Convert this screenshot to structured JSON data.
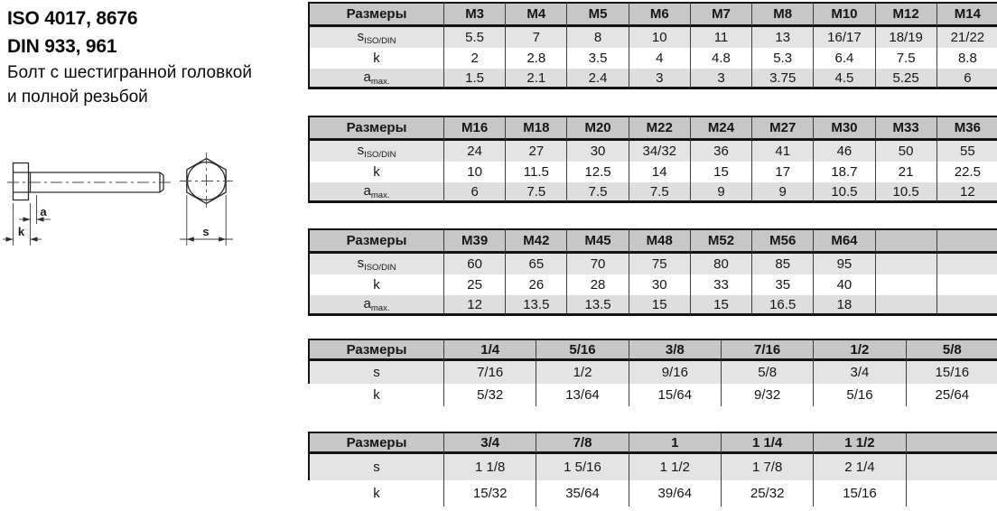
{
  "header": {
    "iso_line": "ISO 4017, 8676",
    "din_line": "DIN 933, 961",
    "description_line1": "Болт с шестигранной головкой",
    "description_line2": "и полной резьбой"
  },
  "diagram": {
    "labels": {
      "a": "a",
      "k": "k",
      "s": "s"
    }
  },
  "colors": {
    "header_bg": "#c7c7c7",
    "row_shade_s": "#e4e4e4",
    "row_shade_a": "#dedede",
    "row_white_bg": "#ffffff",
    "border_dark": "#141414",
    "grid_line": "#3f3f3f"
  },
  "tables": [
    {
      "name": "metric-table-m3-m14",
      "header_label": "Размеры",
      "columns": [
        "M3",
        "M4",
        "M5",
        "M6",
        "M7",
        "M8",
        "M10",
        "M12",
        "M14"
      ],
      "bottom_border": true,
      "rows": [
        {
          "label_main": "s",
          "label_sub": "ISO/DIN",
          "shade": "s",
          "open": false,
          "values": [
            "5.5",
            "7",
            "8",
            "10",
            "11",
            "13",
            "16/17",
            "18/19",
            "21/22"
          ]
        },
        {
          "label_main": "k",
          "label_sub": "",
          "shade": "none",
          "open": false,
          "values": [
            "2",
            "2.8",
            "3.5",
            "4",
            "4.8",
            "5.3",
            "6.4",
            "7.5",
            "8.8"
          ]
        },
        {
          "label_main": "a",
          "label_sub": "max.",
          "shade": "a",
          "open": false,
          "values": [
            "1.5",
            "2.1",
            "2.4",
            "3",
            "3",
            "3.75",
            "4.5",
            "5.25",
            "6"
          ]
        }
      ]
    },
    {
      "name": "metric-table-m16-m36",
      "header_label": "Размеры",
      "columns": [
        "M16",
        "M18",
        "M20",
        "M22",
        "M24",
        "M27",
        "M30",
        "M33",
        "M36"
      ],
      "bottom_border": true,
      "rows": [
        {
          "label_main": "s",
          "label_sub": "ISO/DIN",
          "shade": "s",
          "open": false,
          "values": [
            "24",
            "27",
            "30",
            "34/32",
            "36",
            "41",
            "46",
            "50",
            "55"
          ]
        },
        {
          "label_main": "k",
          "label_sub": "",
          "shade": "none",
          "open": false,
          "values": [
            "10",
            "11.5",
            "12.5",
            "14",
            "15",
            "17",
            "18.7",
            "21",
            "22.5"
          ]
        },
        {
          "label_main": "a",
          "label_sub": "max.",
          "shade": "a",
          "open": false,
          "values": [
            "6",
            "7.5",
            "7.5",
            "7.5",
            "9",
            "9",
            "10.5",
            "10.5",
            "12"
          ]
        }
      ]
    },
    {
      "name": "metric-table-m39-m64",
      "header_label": "Размеры",
      "columns": [
        "M39",
        "M42",
        "M45",
        "M48",
        "M52",
        "M56",
        "M64",
        "",
        ""
      ],
      "bottom_border": true,
      "rows": [
        {
          "label_main": "s",
          "label_sub": "ISO/DIN",
          "shade": "s",
          "open": false,
          "values": [
            "60",
            "65",
            "70",
            "75",
            "80",
            "85",
            "95",
            "",
            ""
          ]
        },
        {
          "label_main": "k",
          "label_sub": "",
          "shade": "none",
          "open": false,
          "values": [
            "25",
            "26",
            "28",
            "30",
            "33",
            "35",
            "40",
            "",
            ""
          ]
        },
        {
          "label_main": "a",
          "label_sub": "max.",
          "shade": "a",
          "open": false,
          "values": [
            "12",
            "13.5",
            "13.5",
            "15",
            "15",
            "16.5",
            "18",
            "",
            ""
          ]
        }
      ]
    },
    {
      "name": "inch-table-1-4-to-5-8",
      "header_label": "Размеры",
      "columns": [
        "1/4",
        "5/16",
        "3/8",
        "7/16",
        "1/2",
        "5/8"
      ],
      "bottom_border": false,
      "rows": [
        {
          "label_main": "s",
          "label_sub": "",
          "shade": "s",
          "open": false,
          "values": [
            "7/16",
            "1/2",
            "9/16",
            "5/8",
            "3/4",
            "15/16"
          ]
        },
        {
          "label_main": "k",
          "label_sub": "",
          "shade": "none",
          "open": true,
          "values": [
            "5/32",
            "13/64",
            "15/64",
            "9/32",
            "5/16",
            "25/64"
          ]
        }
      ]
    },
    {
      "name": "inch-table-3-4-to-1-1-2",
      "header_label": "Размеры",
      "columns": [
        "3/4",
        "7/8",
        "1",
        "1 1/4",
        "1 1/2",
        ""
      ],
      "bottom_border": false,
      "rows": [
        {
          "label_main": "s",
          "label_sub": "",
          "shade": "s",
          "open": false,
          "values": [
            "1 1/8",
            "1 5/16",
            "1 1/2",
            "1 7/8",
            "2 1/4",
            ""
          ]
        },
        {
          "label_main": "k",
          "label_sub": "",
          "shade": "none",
          "open": true,
          "values": [
            "15/32",
            "35/64",
            "39/64",
            "25/32",
            "15/16",
            ""
          ]
        }
      ]
    }
  ]
}
